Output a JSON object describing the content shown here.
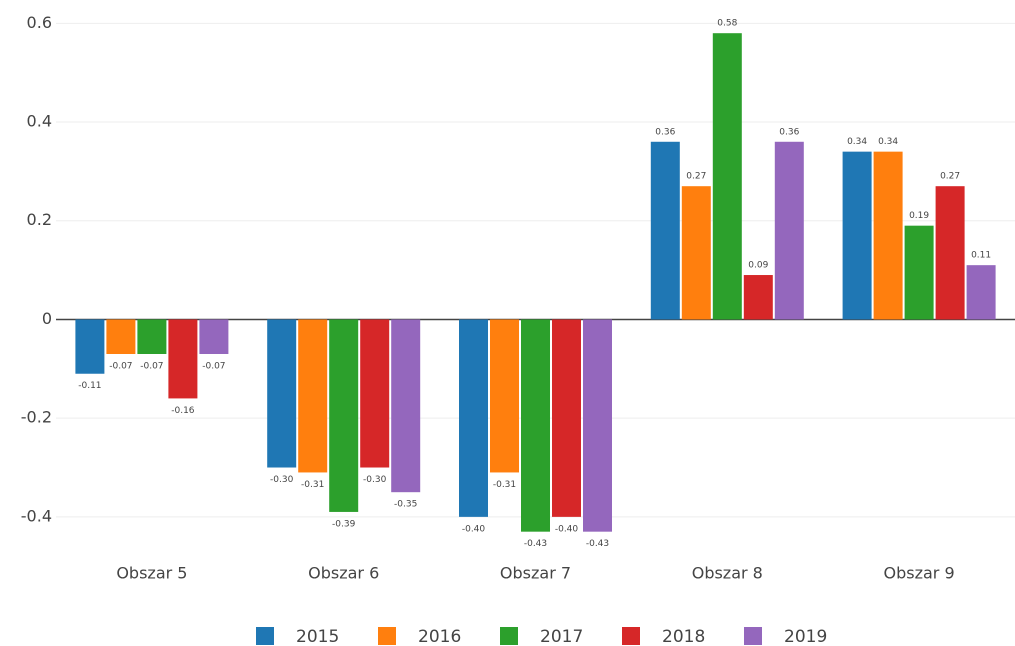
{
  "chart_data": {
    "type": "bar",
    "categories": [
      "Obszar 5",
      "Obszar 6",
      "Obszar 7",
      "Obszar 8",
      "Obszar 9"
    ],
    "series": [
      {
        "name": "2015",
        "color": "#1f77b4",
        "values": [
          -0.11,
          -0.3,
          -0.4,
          0.36,
          0.34
        ],
        "value_labels": [
          "-0.11",
          "-0.30",
          "-0.40",
          "0.36",
          "0.34"
        ]
      },
      {
        "name": "2016",
        "color": "#ff7f0e",
        "values": [
          -0.07,
          -0.31,
          -0.31,
          0.27,
          0.34
        ],
        "value_labels": [
          "-0.07",
          "-0.31",
          "-0.31",
          "0.27",
          "0.34"
        ]
      },
      {
        "name": "2017",
        "color": "#2ca02c",
        "values": [
          -0.07,
          -0.39,
          -0.43,
          0.58,
          0.19
        ],
        "value_labels": [
          "-0.07",
          "-0.39",
          "-0.43",
          "0.58",
          "0.19"
        ]
      },
      {
        "name": "2018",
        "color": "#d62728",
        "values": [
          -0.16,
          -0.3,
          -0.4,
          0.09,
          0.27
        ],
        "value_labels": [
          "-0.16",
          "-0.30",
          "-0.40",
          "0.09",
          "0.27"
        ]
      },
      {
        "name": "2019",
        "color": "#9467bd",
        "values": [
          -0.07,
          -0.35,
          -0.43,
          0.36,
          0.11
        ],
        "value_labels": [
          "-0.07",
          "-0.35",
          "-0.43",
          "0.36",
          "0.11"
        ]
      }
    ],
    "ylim": [
      -0.457,
      0.627
    ],
    "yticks": [
      -0.4,
      -0.2,
      0,
      0.2,
      0.4,
      0.6
    ],
    "grid": true,
    "legend": "bottom"
  }
}
